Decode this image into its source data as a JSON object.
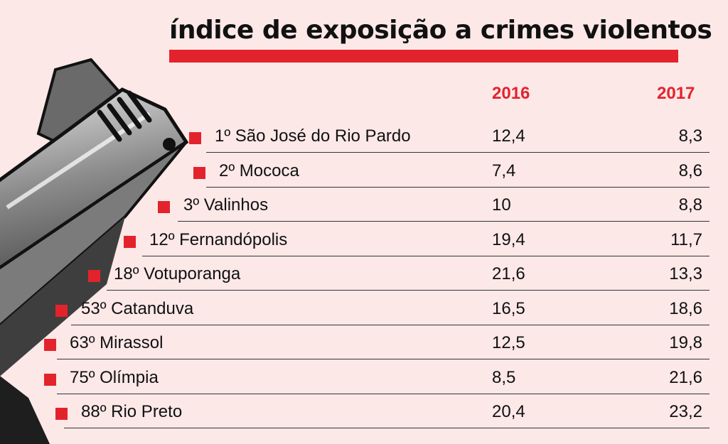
{
  "chart_data": {
    "type": "table",
    "title": "índice de exposição a crimes violentos",
    "columns": [
      "2016",
      "2017"
    ],
    "rows": [
      {
        "label": "1º São José do Rio Pardo",
        "v2016": "12,4",
        "v2017": "8,3"
      },
      {
        "label": "2º Mococa",
        "v2016": "7,4",
        "v2017": "8,6"
      },
      {
        "label": "3º Valinhos",
        "v2016": "10",
        "v2017": "8,8"
      },
      {
        "label": "12º Fernandópolis",
        "v2016": "19,4",
        "v2017": "11,7"
      },
      {
        "label": "18º Votuporanga",
        "v2016": "21,6",
        "v2017": "13,3"
      },
      {
        "label": "53º Catanduva",
        "v2016": "16,5",
        "v2017": "18,6"
      },
      {
        "label": "63º Mirassol",
        "v2016": "12,5",
        "v2017": "19,8"
      },
      {
        "label": "75º Olímpia",
        "v2016": "8,5",
        "v2017": "21,6"
      },
      {
        "label": "88º Rio Preto",
        "v2016": "20,4",
        "v2017": "23,2"
      }
    ],
    "accent_color": "#e3232c",
    "background_color": "#fde8e8"
  },
  "decoration": {
    "icon": "pistol-barrel-icon"
  }
}
